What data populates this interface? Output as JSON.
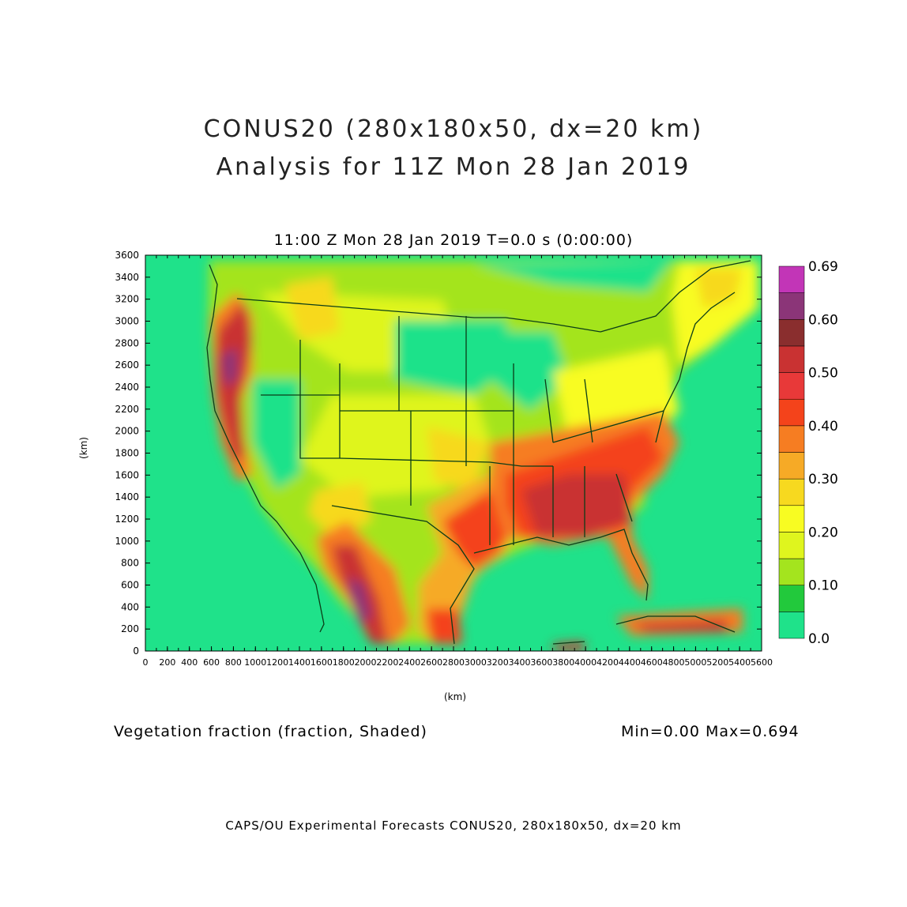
{
  "header": {
    "title_line1": "CONUS20 (280x180x50, dx=20 km)",
    "title_line2": "Analysis for 11Z Mon 28 Jan 2019"
  },
  "plot": {
    "subtitle": "11:00 Z Mon 28 Jan 2019    T=0.0 s (0:00:00)",
    "x_label": "(km)",
    "y_label": "(km)",
    "x_ticks": [
      "0",
      "200",
      "400",
      "600",
      "800",
      "1000",
      "1200",
      "1400",
      "1600",
      "1800",
      "2000",
      "2200",
      "2400",
      "2600",
      "2800",
      "3000",
      "3200",
      "3400",
      "3600",
      "3800",
      "4000",
      "4200",
      "4400",
      "4600",
      "4800",
      "5000",
      "5200",
      "5400",
      "5600"
    ],
    "y_ticks": [
      "0",
      "200",
      "400",
      "600",
      "800",
      "1000",
      "1200",
      "1400",
      "1600",
      "1800",
      "2000",
      "2200",
      "2400",
      "2600",
      "2800",
      "3000",
      "3200",
      "3400",
      "3600"
    ],
    "x_range": [
      0,
      5600
    ],
    "y_range": [
      0,
      3600
    ]
  },
  "colorbar": {
    "labels": [
      "0.0",
      "0.10",
      "0.20",
      "0.30",
      "0.40",
      "0.50",
      "0.60",
      "0.69"
    ],
    "colors": [
      "#1fe28a",
      "#22c93c",
      "#a4e41e",
      "#dff51e",
      "#f8fc22",
      "#f7d91f",
      "#f6aa26",
      "#f67d22",
      "#f4431b",
      "#e83939",
      "#c93232",
      "#8a2e2e",
      "#8b3578",
      "#c235b7"
    ]
  },
  "legend_field": "Vegetation fraction (fraction, Shaded)",
  "stats": "Min=0.00  Max=0.694",
  "footer": "CAPS/OU Experimental Forecasts  CONUS20, 280x180x50, dx=20 km",
  "map": {
    "ocean_color": "#1fe28a",
    "boundary_color": "#0b3d17"
  }
}
